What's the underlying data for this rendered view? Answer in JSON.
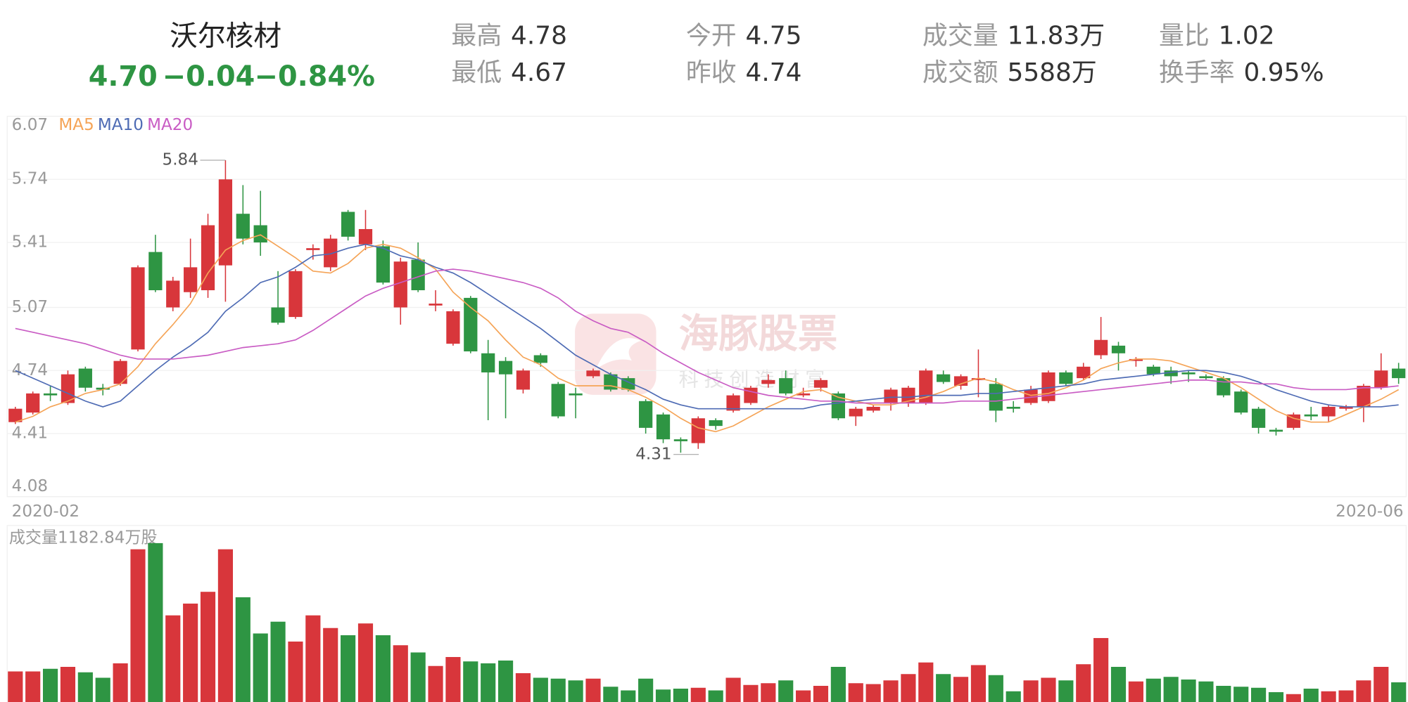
{
  "header": {
    "name": "沃尔核材",
    "price": "4.70",
    "change": "−0.04",
    "change_pct": "−0.84%",
    "stats": [
      {
        "label": "最高",
        "value": "4.78"
      },
      {
        "label": "最低",
        "value": "4.67"
      },
      {
        "label": "今开",
        "value": "4.75"
      },
      {
        "label": "昨收",
        "value": "4.74"
      },
      {
        "label": "成交量",
        "value": "11.83万"
      },
      {
        "label": "成交额",
        "value": "5588万"
      },
      {
        "label": "量比",
        "value": "1.02"
      },
      {
        "label": "换手率",
        "value": "0.95%"
      }
    ]
  },
  "watermark": {
    "title": "海豚股票",
    "subtitle": "科技创造财富"
  },
  "chart_data": [
    {
      "type": "candlestick",
      "categories": [
        "2020-02",
        null,
        null,
        null,
        null,
        null,
        null,
        null,
        null,
        null,
        null,
        null,
        null,
        null,
        null,
        null,
        null,
        null,
        null,
        null,
        null,
        null,
        null,
        null,
        null,
        null,
        null,
        null,
        null,
        null,
        null,
        null,
        null,
        null,
        null,
        null,
        null,
        null,
        null,
        null,
        null,
        null,
        null,
        null,
        null,
        null,
        null,
        null,
        null,
        null,
        null,
        null,
        null,
        null,
        null,
        null,
        null,
        null,
        null,
        null,
        null,
        null,
        null,
        null,
        null,
        null,
        null,
        null,
        null,
        null,
        null,
        null,
        null,
        null,
        null,
        null,
        null,
        null,
        null,
        "2020-06"
      ],
      "open": [
        4.47,
        4.52,
        4.62,
        4.57,
        4.75,
        4.65,
        4.67,
        4.85,
        5.36,
        5.07,
        5.15,
        5.16,
        5.29,
        5.56,
        5.5,
        5.07,
        5.02,
        5.37,
        5.28,
        5.57,
        5.4,
        5.39,
        5.07,
        5.32,
        5.08,
        4.88,
        5.12,
        4.83,
        4.79,
        4.64,
        4.82,
        4.67,
        4.62,
        4.71,
        4.72,
        4.7,
        4.58,
        4.51,
        4.38,
        4.36,
        4.48,
        4.53,
        4.57,
        4.67,
        4.7,
        4.61,
        4.65,
        4.62,
        4.5,
        4.53,
        4.57,
        4.57,
        4.57,
        4.72,
        4.66,
        4.69,
        4.67,
        4.55,
        4.57,
        4.58,
        4.73,
        4.7,
        4.82,
        4.87,
        4.79,
        4.76,
        4.74,
        4.73,
        4.71,
        4.7,
        4.63,
        4.54,
        4.43,
        4.44,
        4.51,
        4.5,
        4.54,
        4.55,
        4.65,
        4.75
      ],
      "high": [
        4.55,
        4.63,
        4.66,
        4.74,
        4.76,
        4.67,
        4.8,
        5.29,
        5.45,
        5.23,
        5.43,
        5.56,
        5.84,
        5.71,
        5.68,
        5.26,
        5.27,
        5.4,
        5.45,
        5.58,
        5.58,
        5.42,
        5.33,
        5.41,
        5.16,
        5.06,
        5.13,
        4.9,
        4.81,
        4.75,
        4.83,
        4.68,
        4.65,
        4.75,
        4.73,
        4.71,
        4.59,
        4.52,
        4.39,
        4.5,
        4.49,
        4.62,
        4.66,
        4.72,
        4.74,
        4.65,
        4.7,
        4.63,
        4.55,
        4.56,
        4.65,
        4.66,
        4.75,
        4.74,
        4.72,
        4.85,
        4.7,
        4.58,
        4.66,
        4.74,
        4.74,
        4.78,
        5.02,
        4.89,
        4.81,
        4.77,
        4.76,
        4.74,
        4.72,
        4.71,
        4.64,
        4.55,
        4.44,
        4.52,
        4.55,
        4.56,
        4.56,
        4.67,
        4.83,
        4.78
      ],
      "low": [
        4.46,
        4.51,
        4.58,
        4.56,
        4.63,
        4.61,
        4.66,
        4.84,
        5.15,
        5.05,
        5.12,
        5.12,
        5.1,
        5.4,
        5.34,
        4.98,
        5.01,
        5.32,
        5.26,
        5.42,
        5.37,
        5.19,
        4.98,
        5.15,
        5.05,
        4.87,
        4.83,
        4.48,
        4.49,
        4.62,
        4.76,
        4.49,
        4.49,
        4.7,
        4.63,
        4.63,
        4.41,
        4.36,
        4.31,
        4.33,
        4.43,
        4.52,
        4.56,
        4.65,
        4.61,
        4.6,
        4.63,
        4.48,
        4.45,
        4.52,
        4.53,
        4.55,
        4.56,
        4.67,
        4.64,
        4.6,
        4.47,
        4.52,
        4.56,
        4.57,
        4.66,
        4.69,
        4.8,
        4.74,
        4.76,
        4.71,
        4.67,
        4.68,
        4.69,
        4.6,
        4.51,
        4.41,
        4.4,
        4.43,
        4.48,
        4.47,
        4.53,
        4.47,
        4.64,
        4.67
      ],
      "close": [
        4.54,
        4.62,
        4.61,
        4.72,
        4.65,
        4.64,
        4.79,
        5.28,
        5.16,
        5.21,
        5.28,
        5.5,
        5.74,
        5.43,
        5.41,
        4.99,
        5.26,
        5.38,
        5.43,
        5.44,
        5.48,
        5.2,
        5.31,
        5.16,
        5.09,
        5.05,
        4.84,
        4.73,
        4.72,
        4.74,
        4.78,
        4.5,
        4.61,
        4.74,
        4.64,
        4.64,
        4.44,
        4.38,
        4.37,
        4.49,
        4.45,
        4.61,
        4.65,
        4.69,
        4.62,
        4.62,
        4.69,
        4.49,
        4.54,
        4.55,
        4.64,
        4.65,
        4.74,
        4.68,
        4.71,
        4.7,
        4.53,
        4.54,
        4.64,
        4.73,
        4.67,
        4.76,
        4.9,
        4.83,
        4.8,
        4.72,
        4.71,
        4.72,
        4.7,
        4.61,
        4.52,
        4.44,
        4.42,
        4.51,
        4.5,
        4.55,
        4.55,
        4.66,
        4.74,
        4.7
      ],
      "up_color": "#d8363b",
      "down_color": "#2e9543",
      "series": [
        {
          "name": "MA5",
          "color": "#f5a457",
          "values": [
            4.47,
            4.5,
            4.55,
            4.58,
            4.62,
            4.64,
            4.67,
            4.76,
            4.88,
            4.98,
            5.09,
            5.25,
            5.37,
            5.42,
            5.45,
            5.39,
            5.33,
            5.26,
            5.25,
            5.3,
            5.38,
            5.4,
            5.38,
            5.33,
            5.27,
            5.15,
            5.07,
            5.0,
            4.9,
            4.81,
            4.77,
            4.7,
            4.66,
            4.66,
            4.66,
            4.64,
            4.6,
            4.55,
            4.49,
            4.44,
            4.42,
            4.45,
            4.5,
            4.55,
            4.59,
            4.63,
            4.64,
            4.6,
            4.58,
            4.56,
            4.56,
            4.58,
            4.6,
            4.63,
            4.67,
            4.7,
            4.68,
            4.64,
            4.61,
            4.62,
            4.65,
            4.69,
            4.75,
            4.78,
            4.8,
            4.8,
            4.79,
            4.76,
            4.73,
            4.7,
            4.65,
            4.59,
            4.53,
            4.49,
            4.47,
            4.47,
            4.51,
            4.55,
            4.59,
            4.64
          ]
        },
        {
          "name": "MA10",
          "color": "#4e6bb4",
          "values": [
            4.74,
            4.7,
            4.66,
            4.62,
            4.58,
            4.55,
            4.58,
            4.66,
            4.74,
            4.81,
            4.87,
            4.94,
            5.05,
            5.12,
            5.2,
            5.23,
            5.28,
            5.34,
            5.35,
            5.38,
            5.4,
            5.38,
            5.34,
            5.32,
            5.28,
            5.25,
            5.2,
            5.14,
            5.08,
            5.02,
            4.96,
            4.89,
            4.82,
            4.77,
            4.72,
            4.68,
            4.64,
            4.59,
            4.56,
            4.54,
            4.54,
            4.54,
            4.54,
            4.54,
            4.54,
            4.54,
            4.56,
            4.57,
            4.58,
            4.59,
            4.6,
            4.6,
            4.61,
            4.61,
            4.61,
            4.62,
            4.62,
            4.63,
            4.64,
            4.65,
            4.66,
            4.67,
            4.69,
            4.7,
            4.71,
            4.72,
            4.73,
            4.74,
            4.74,
            4.73,
            4.71,
            4.68,
            4.64,
            4.61,
            4.58,
            4.56,
            4.55,
            4.55,
            4.55,
            4.56
          ]
        },
        {
          "name": "MA20",
          "color": "#c95cc4",
          "values": [
            4.96,
            4.94,
            4.92,
            4.9,
            4.88,
            4.85,
            4.82,
            4.8,
            4.8,
            4.8,
            4.81,
            4.82,
            4.84,
            4.86,
            4.87,
            4.88,
            4.9,
            4.95,
            5.01,
            5.07,
            5.13,
            5.17,
            5.2,
            5.23,
            5.26,
            5.27,
            5.26,
            5.24,
            5.22,
            5.2,
            5.17,
            5.12,
            5.05,
            5.0,
            4.96,
            4.94,
            4.89,
            4.83,
            4.78,
            4.73,
            4.69,
            4.65,
            4.63,
            4.61,
            4.6,
            4.59,
            4.58,
            4.58,
            4.57,
            4.57,
            4.57,
            4.57,
            4.57,
            4.57,
            4.58,
            4.58,
            4.58,
            4.59,
            4.6,
            4.61,
            4.62,
            4.63,
            4.64,
            4.65,
            4.66,
            4.67,
            4.68,
            4.69,
            4.69,
            4.68,
            4.68,
            4.67,
            4.67,
            4.65,
            4.64,
            4.64,
            4.64,
            4.65,
            4.65,
            4.66
          ]
        }
      ],
      "ylim": [
        4.08,
        6.07
      ],
      "yticks": [
        6.07,
        5.74,
        5.41,
        5.07,
        4.74,
        4.41,
        4.08
      ],
      "grid": true
    },
    {
      "type": "bar",
      "title": "成交量1182.84万股",
      "values": [
        1800,
        1800,
        1950,
        2060,
        1750,
        1440,
        2260,
        8750,
        9100,
        4990,
        5660,
        6330,
        8750,
        6020,
        3960,
        4630,
        3500,
        4990,
        4270,
        3860,
        4530,
        3860,
        3290,
        2880,
        2110,
        2620,
        2370,
        2260,
        2420,
        1700,
        1440,
        1390,
        1290,
        1390,
        930,
        720,
        1390,
        770,
        820,
        870,
        720,
        1440,
        1030,
        1130,
        1290,
        720,
        980,
        2060,
        1130,
        1080,
        1290,
        1650,
        2310,
        1650,
        1490,
        2160,
        1590,
        670,
        1290,
        1440,
        1290,
        2210,
        3700,
        2060,
        1230,
        1390,
        1490,
        1340,
        1230,
        980,
        930,
        870,
        620,
        510,
        820,
        670,
        720,
        1290,
        2060,
        1180
      ],
      "ylim": [
        0,
        10000
      ]
    }
  ]
}
